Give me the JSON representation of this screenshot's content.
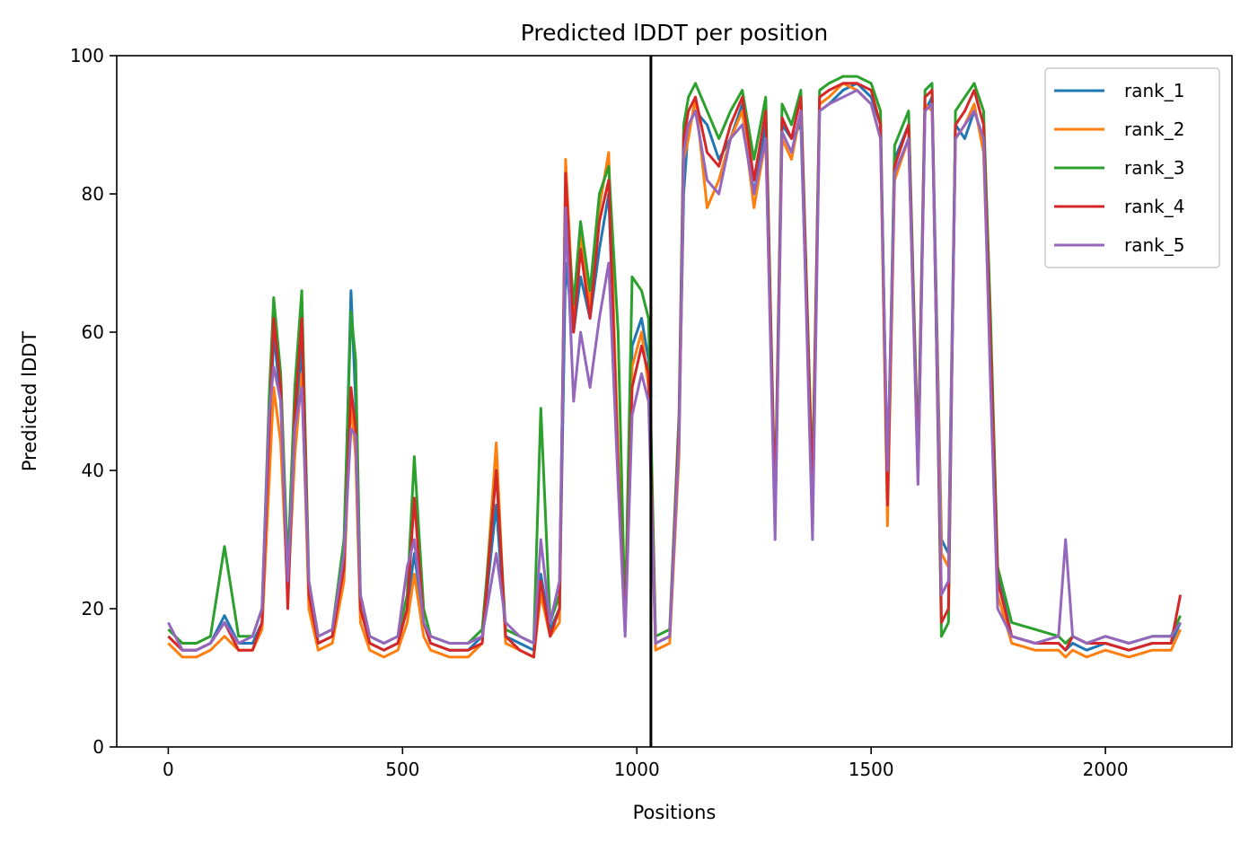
{
  "chart_data": {
    "type": "line",
    "title": "Predicted lDDT per position",
    "xlabel": "Positions",
    "ylabel": "Predicted lDDT",
    "xlim": [
      -110,
      2270
    ],
    "ylim": [
      0,
      100
    ],
    "xticks": [
      0,
      500,
      1000,
      1500,
      2000
    ],
    "yticks": [
      0,
      20,
      40,
      60,
      80,
      100
    ],
    "grid": false,
    "legend_position": "top-right",
    "chain_break": 1030,
    "x": [
      0,
      30,
      60,
      90,
      120,
      150,
      180,
      200,
      215,
      225,
      240,
      255,
      270,
      285,
      300,
      320,
      350,
      375,
      390,
      400,
      410,
      430,
      460,
      490,
      510,
      525,
      545,
      560,
      600,
      640,
      670,
      700,
      720,
      750,
      780,
      795,
      815,
      835,
      848,
      865,
      880,
      900,
      920,
      940,
      960,
      975,
      990,
      1010,
      1025,
      1040,
      1070,
      1090,
      1100,
      1110,
      1125,
      1150,
      1175,
      1200,
      1225,
      1250,
      1275,
      1295,
      1310,
      1330,
      1350,
      1375,
      1390,
      1410,
      1440,
      1470,
      1500,
      1520,
      1535,
      1550,
      1580,
      1600,
      1615,
      1630,
      1650,
      1665,
      1680,
      1700,
      1720,
      1740,
      1755,
      1770,
      1800,
      1850,
      1900,
      1915,
      1930,
      1960,
      2000,
      2050,
      2100,
      2140,
      2160
    ],
    "series": [
      {
        "name": "rank_1",
        "color": "#1f77b4",
        "values": [
          16,
          14,
          14,
          15,
          19,
          15,
          15,
          18,
          40,
          60,
          50,
          24,
          46,
          58,
          22,
          15,
          16,
          28,
          66,
          50,
          20,
          15,
          14,
          15,
          20,
          28,
          18,
          15,
          14,
          14,
          16,
          35,
          16,
          15,
          14,
          25,
          17,
          20,
          70,
          60,
          68,
          62,
          72,
          80,
          40,
          18,
          58,
          62,
          56,
          15,
          16,
          45,
          80,
          90,
          92,
          90,
          85,
          88,
          93,
          80,
          90,
          33,
          90,
          88,
          90,
          35,
          92,
          93,
          95,
          96,
          94,
          90,
          38,
          85,
          90,
          40,
          92,
          94,
          30,
          28,
          90,
          88,
          92,
          88,
          60,
          25,
          16,
          15,
          15,
          14,
          15,
          14,
          15,
          14,
          15,
          15,
          18
        ]
      },
      {
        "name": "rank_2",
        "color": "#ff7f0e",
        "values": [
          15,
          13,
          13,
          14,
          16,
          14,
          14,
          17,
          38,
          52,
          44,
          22,
          42,
          54,
          20,
          14,
          15,
          24,
          50,
          42,
          18,
          14,
          13,
          14,
          18,
          25,
          16,
          14,
          13,
          13,
          15,
          44,
          15,
          14,
          13,
          22,
          16,
          18,
          85,
          62,
          74,
          64,
          78,
          86,
          42,
          17,
          55,
          60,
          52,
          14,
          15,
          42,
          85,
          88,
          94,
          78,
          82,
          88,
          92,
          78,
          88,
          32,
          88,
          85,
          92,
          38,
          93,
          94,
          96,
          95,
          93,
          88,
          32,
          82,
          88,
          38,
          93,
          92,
          28,
          26,
          88,
          90,
          93,
          86,
          55,
          22,
          15,
          14,
          14,
          13,
          14,
          13,
          14,
          13,
          14,
          14,
          17
        ]
      },
      {
        "name": "rank_3",
        "color": "#2ca02c",
        "values": [
          17,
          15,
          15,
          16,
          29,
          16,
          16,
          20,
          50,
          65,
          54,
          26,
          52,
          66,
          24,
          16,
          17,
          30,
          63,
          56,
          22,
          16,
          15,
          16,
          22,
          42,
          20,
          16,
          15,
          15,
          17,
          40,
          17,
          16,
          15,
          49,
          18,
          22,
          80,
          64,
          76,
          66,
          80,
          84,
          60,
          18,
          68,
          66,
          62,
          16,
          17,
          48,
          90,
          94,
          96,
          92,
          88,
          92,
          95,
          85,
          94,
          35,
          93,
          90,
          95,
          38,
          95,
          96,
          97,
          97,
          96,
          92,
          36,
          87,
          92,
          42,
          95,
          96,
          16,
          18,
          92,
          94,
          96,
          92,
          62,
          26,
          18,
          17,
          16,
          15,
          16,
          15,
          16,
          15,
          16,
          16,
          19
        ]
      },
      {
        "name": "rank_4",
        "color": "#d62728",
        "values": [
          16,
          14,
          14,
          15,
          18,
          14,
          14,
          18,
          45,
          62,
          52,
          20,
          48,
          62,
          22,
          15,
          16,
          26,
          52,
          46,
          20,
          15,
          14,
          15,
          20,
          36,
          18,
          15,
          14,
          14,
          15,
          40,
          16,
          14,
          13,
          24,
          16,
          20,
          83,
          60,
          72,
          62,
          76,
          82,
          40,
          17,
          52,
          58,
          54,
          15,
          16,
          46,
          88,
          92,
          94,
          86,
          84,
          90,
          94,
          82,
          92,
          34,
          91,
          88,
          94,
          36,
          94,
          95,
          96,
          96,
          95,
          90,
          35,
          84,
          90,
          40,
          94,
          95,
          18,
          20,
          90,
          92,
          95,
          90,
          58,
          24,
          16,
          15,
          15,
          14,
          16,
          15,
          15,
          14,
          15,
          15,
          22
        ]
      },
      {
        "name": "rank_5",
        "color": "#9467bd",
        "values": [
          18,
          14,
          14,
          15,
          18,
          15,
          16,
          20,
          48,
          55,
          50,
          24,
          46,
          52,
          24,
          16,
          17,
          28,
          46,
          45,
          22,
          16,
          15,
          16,
          26,
          30,
          18,
          16,
          15,
          15,
          16,
          28,
          18,
          16,
          15,
          30,
          18,
          24,
          78,
          50,
          60,
          52,
          62,
          70,
          38,
          16,
          48,
          54,
          50,
          15,
          16,
          44,
          86,
          90,
          92,
          82,
          80,
          88,
          90,
          80,
          88,
          30,
          89,
          86,
          92,
          30,
          92,
          93,
          94,
          95,
          93,
          88,
          40,
          83,
          88,
          38,
          92,
          93,
          22,
          24,
          88,
          90,
          92,
          88,
          52,
          20,
          16,
          15,
          16,
          30,
          16,
          15,
          16,
          15,
          16,
          16,
          18
        ]
      }
    ]
  }
}
